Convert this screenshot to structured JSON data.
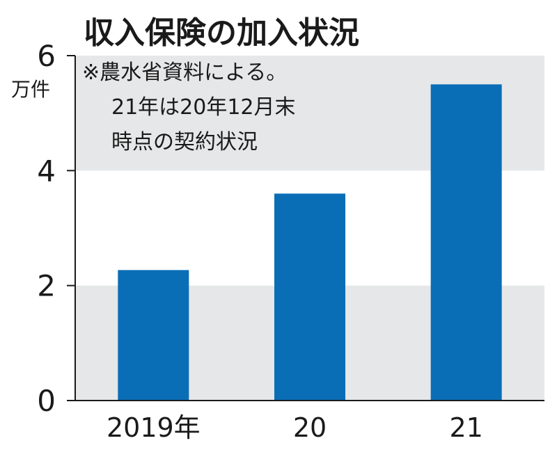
{
  "chart_data": {
    "type": "bar",
    "title": "収入保険の加入状況",
    "ylabel": "万件",
    "note": [
      "※農水省資料による。",
      "21年は20年12月末",
      "時点の契約状況"
    ],
    "categories": [
      "2019年",
      "20",
      "21"
    ],
    "values": [
      2.27,
      3.6,
      5.5
    ],
    "ylim": [
      0,
      6
    ],
    "yticks": [
      "0",
      "2",
      "4",
      "6"
    ],
    "grid": "alternating bands",
    "legend": "none"
  },
  "colors": {
    "bar": "#0a6eb6",
    "band": "#e6e7e8",
    "axis": "#1a1a1a",
    "text": "#1a1a1a"
  }
}
